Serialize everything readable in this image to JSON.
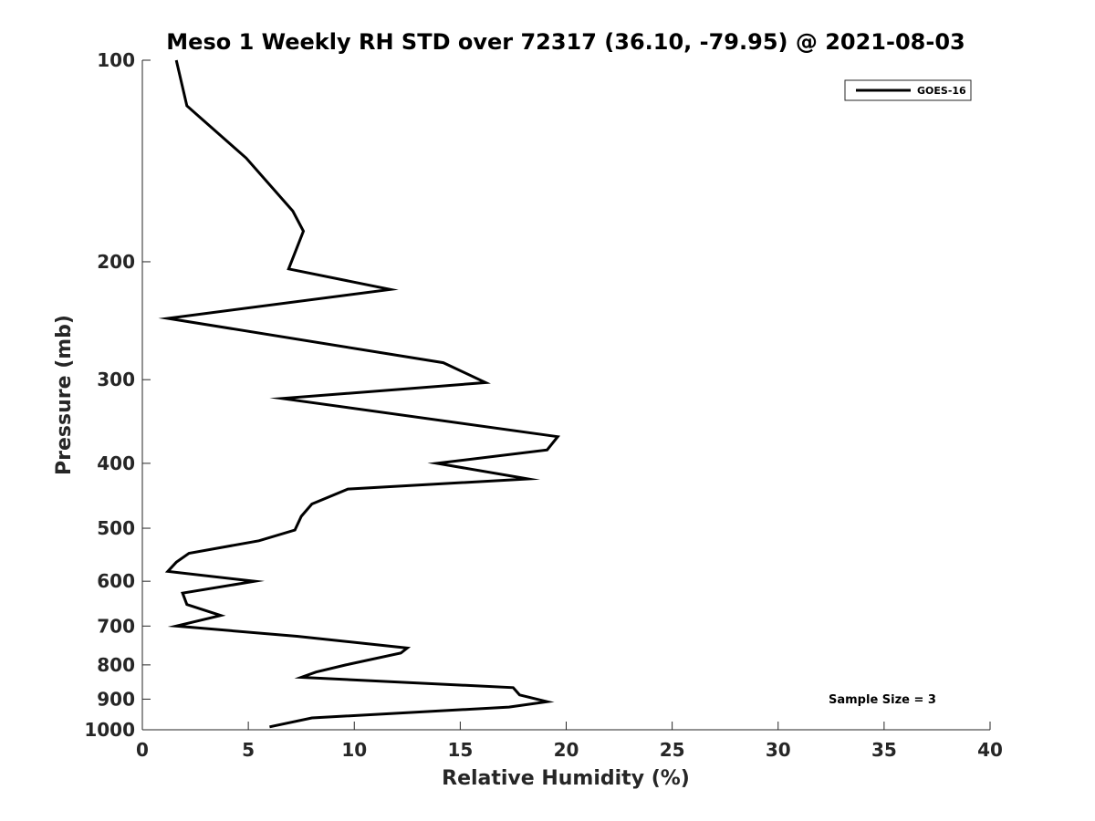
{
  "chart_data": {
    "type": "line",
    "title": "Meso 1 Weekly RH STD over 72317 (36.10, -79.95) @ 2021-08-03",
    "xlabel": "Relative Humidity (%)",
    "ylabel": "Pressure (mb)",
    "xlim": [
      0,
      40
    ],
    "ylim": [
      100,
      1000
    ],
    "y_scale": "log",
    "y_reversed": true,
    "x_ticks": [
      0,
      5,
      10,
      15,
      20,
      25,
      30,
      35,
      40
    ],
    "y_ticks": [
      100,
      200,
      300,
      400,
      500,
      600,
      700,
      800,
      900,
      1000
    ],
    "grid": false,
    "legend_position": "top-right",
    "series": [
      {
        "name": "GOES-16",
        "color": "#000000",
        "x": [
          6.0,
          8.0,
          17.3,
          19.1,
          17.8,
          17.5,
          7.5,
          8.2,
          9.6,
          12.2,
          12.5,
          7.3,
          1.6,
          3.7,
          2.1,
          1.9,
          5.3,
          1.2,
          1.6,
          2.2,
          5.5,
          7.2,
          7.5,
          8.0,
          9.7,
          18.2,
          13.9,
          19.1,
          19.6,
          6.6,
          16.2,
          14.2,
          1.2,
          11.7,
          6.9,
          7.6,
          7.1,
          4.9,
          2.1,
          1.6
        ],
        "y": [
          990,
          960,
          925,
          908,
          887,
          865,
          835,
          820,
          800,
          768,
          755,
          725,
          700,
          675,
          650,
          625,
          600,
          580,
          562,
          545,
          522,
          503,
          480,
          460,
          437,
          422,
          400,
          382,
          365,
          320,
          303,
          283,
          243,
          220,
          205,
          180,
          168,
          140,
          117,
          100
        ]
      }
    ],
    "annotations": [
      "Sample Size = 3"
    ]
  }
}
